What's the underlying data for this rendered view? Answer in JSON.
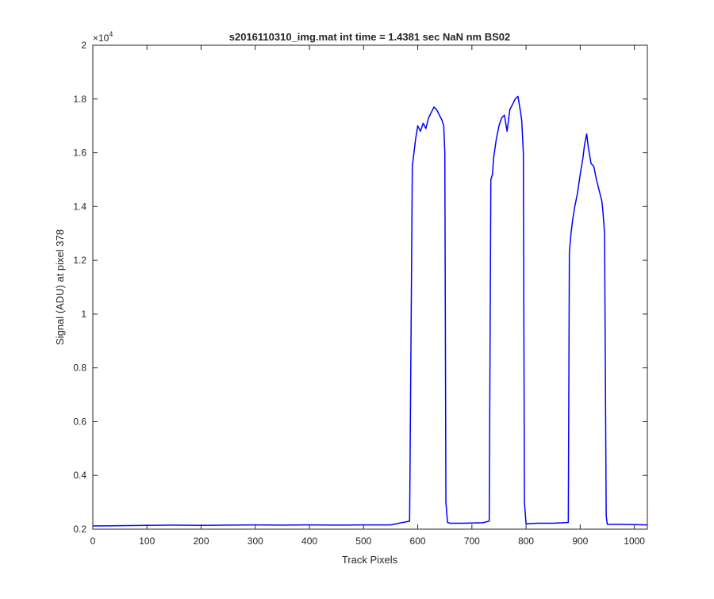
{
  "chart_data": {
    "type": "line",
    "title": "s2016110310_img.mat int time = 1.4381 sec  NaN nm BS02",
    "xlabel": "Track Pixels",
    "ylabel": "Signal (ADU) at pixel 378",
    "y_exponent_label": "×10",
    "y_exponent_power": "4",
    "xlim": [
      0,
      1024
    ],
    "ylim": [
      0.2,
      2.0
    ],
    "y_scale_factor": 10000,
    "x_ticks": [
      0,
      100,
      200,
      300,
      400,
      500,
      600,
      700,
      800,
      900,
      1000
    ],
    "x_tick_labels": [
      "0",
      "100",
      "200",
      "300",
      "400",
      "500",
      "600",
      "700",
      "800",
      "900",
      "1000"
    ],
    "y_ticks": [
      0.2,
      0.4,
      0.6,
      0.8,
      1.0,
      1.2,
      1.4,
      1.6,
      1.8,
      2.0
    ],
    "y_tick_labels": [
      "0.2",
      "0.4",
      "0.6",
      "0.8",
      "1",
      "1.2",
      "1.4",
      "1.6",
      "1.8",
      "2"
    ],
    "grid": false,
    "line_color": "#0000ff",
    "series": [
      {
        "x": [
          0,
          50,
          100,
          150,
          200,
          250,
          300,
          350,
          400,
          450,
          500,
          550,
          585,
          590,
          593,
          596,
          600,
          605,
          610,
          615,
          620,
          625,
          630,
          635,
          640,
          645,
          648,
          650,
          652,
          655,
          660,
          680,
          700,
          720,
          732,
          735,
          738,
          740,
          745,
          750,
          755,
          760,
          765,
          770,
          775,
          780,
          785,
          790,
          792,
          795,
          797,
          800,
          820,
          850,
          878,
          880,
          883,
          886,
          890,
          895,
          900,
          905,
          908,
          912,
          915,
          920,
          925,
          930,
          935,
          940,
          942,
          945,
          948,
          950,
          975,
          1000,
          1024
        ],
        "y": [
          0.212,
          0.213,
          0.214,
          0.215,
          0.214,
          0.215,
          0.216,
          0.215,
          0.216,
          0.215,
          0.216,
          0.216,
          0.23,
          1.55,
          1.6,
          1.65,
          1.7,
          1.68,
          1.71,
          1.69,
          1.73,
          1.75,
          1.77,
          1.76,
          1.74,
          1.72,
          1.7,
          1.6,
          0.3,
          0.225,
          0.222,
          0.222,
          0.223,
          0.224,
          0.23,
          1.5,
          1.52,
          1.58,
          1.65,
          1.7,
          1.73,
          1.74,
          1.68,
          1.76,
          1.78,
          1.8,
          1.81,
          1.75,
          1.72,
          1.6,
          0.3,
          0.22,
          0.222,
          0.222,
          0.225,
          1.23,
          1.3,
          1.35,
          1.4,
          1.45,
          1.52,
          1.58,
          1.63,
          1.67,
          1.62,
          1.56,
          1.55,
          1.5,
          1.46,
          1.42,
          1.38,
          1.3,
          0.25,
          0.218,
          0.218,
          0.217,
          0.216
        ]
      }
    ]
  }
}
